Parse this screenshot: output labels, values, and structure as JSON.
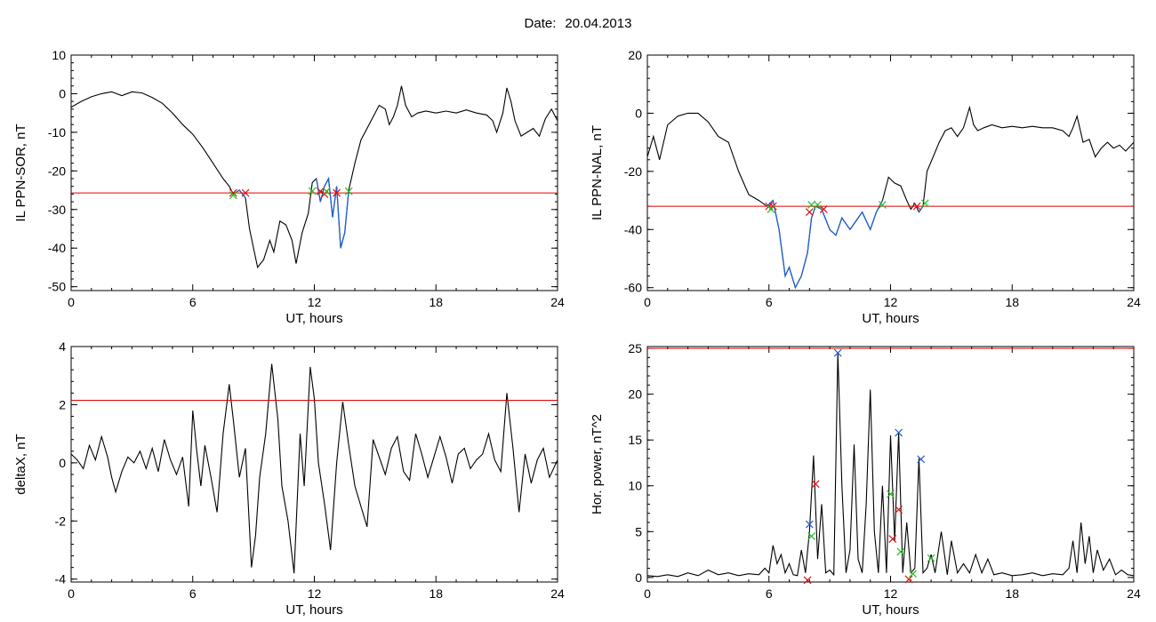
{
  "date_label": "Date:",
  "date_value": "20.04.2013",
  "chart_data": [
    {
      "type": "line",
      "title": "",
      "xlabel": "UT, hours",
      "ylabel": "IL PPN-SOR, nT",
      "xlim": [
        0,
        24
      ],
      "ylim": [
        -51,
        10
      ],
      "xticks": [
        "0",
        "6",
        "12",
        "18",
        "24"
      ],
      "yticks": [
        10,
        0,
        -10,
        -20,
        -30,
        -40,
        -50
      ],
      "ytick_labels": [
        "10",
        "0",
        "-10",
        "-20",
        "-30",
        "-40",
        "-50"
      ],
      "grid": false,
      "threshold": -25.7,
      "threshold_color": "#e00000",
      "series_color": "#000000",
      "highlight_color": "#1f5fd1",
      "highlight_ranges": [
        [
          8.0,
          8.6
        ],
        [
          12.0,
          13.7
        ]
      ],
      "series": [
        {
          "x": [
            0,
            0.5,
            1,
            1.5,
            2,
            2.5,
            3,
            3.5,
            4,
            4.5,
            5,
            5.5,
            6,
            6.5,
            7,
            7.5,
            7.8,
            8.0,
            8.3,
            8.6,
            8.8,
            9.0,
            9.2,
            9.5,
            9.8,
            10.0,
            10.3,
            10.6,
            10.9,
            11.1,
            11.4,
            11.7,
            11.9,
            12.1,
            12.3,
            12.5,
            12.7,
            12.9,
            13.1,
            13.3,
            13.5,
            13.7,
            14.0,
            14.3,
            14.6,
            14.9,
            15.2,
            15.5,
            15.7,
            15.9,
            16.1,
            16.3,
            16.5,
            16.8,
            17.1,
            17.5,
            18.0,
            18.5,
            19.0,
            19.5,
            20.0,
            20.5,
            20.8,
            21.0,
            21.3,
            21.5,
            21.7,
            21.9,
            22.2,
            22.5,
            22.8,
            23.1,
            23.4,
            23.7,
            24
          ],
          "y": [
            -3.5,
            -2,
            -0.8,
            0,
            0.5,
            -0.5,
            0.5,
            0.2,
            -1,
            -2.5,
            -5,
            -8,
            -10.5,
            -14,
            -18,
            -22,
            -24,
            -26,
            -25,
            -27,
            -35,
            -40,
            -45,
            -43,
            -38,
            -41,
            -33,
            -34,
            -38,
            -44,
            -36,
            -31,
            -23,
            -22,
            -28,
            -24,
            -22,
            -32,
            -24,
            -40,
            -36,
            -25,
            -18,
            -12,
            -9,
            -6,
            -3,
            -4,
            -8,
            -6,
            -3,
            2,
            -3,
            -6,
            -5,
            -4.5,
            -5,
            -4.5,
            -5,
            -4.2,
            -5,
            -5.5,
            -7,
            -10,
            -5,
            1.5,
            -2,
            -7,
            -11,
            -10,
            -9,
            -11,
            -6.5,
            -4,
            -7
          ]
        }
      ],
      "markers": [
        {
          "x": 8.0,
          "y": -25.7,
          "color": "red"
        },
        {
          "x": 8.0,
          "y": -26.3,
          "color": "green"
        },
        {
          "x": 8.6,
          "y": -25.7,
          "color": "red"
        },
        {
          "x": 11.9,
          "y": -25.2,
          "color": "green"
        },
        {
          "x": 12.3,
          "y": -25.3,
          "color": "red"
        },
        {
          "x": 12.5,
          "y": -26.0,
          "color": "red"
        },
        {
          "x": 12.6,
          "y": -25.3,
          "color": "green"
        },
        {
          "x": 13.1,
          "y": -25.7,
          "color": "red"
        },
        {
          "x": 13.7,
          "y": -25.3,
          "color": "green"
        }
      ]
    },
    {
      "type": "line",
      "title": "",
      "xlabel": "UT, hours",
      "ylabel": "IL PPN-NAL, nT",
      "xlim": [
        0,
        24
      ],
      "ylim": [
        -61,
        20
      ],
      "xticks": [
        "0",
        "6",
        "12",
        "18",
        "24"
      ],
      "yticks": [
        20,
        0,
        -20,
        -40,
        -60
      ],
      "ytick_labels": [
        "20",
        "0",
        "-20",
        "-40",
        "-60"
      ],
      "grid": false,
      "threshold": -32,
      "threshold_color": "#e00000",
      "series_color": "#000000",
      "highlight_color": "#1f5fd1",
      "highlight_ranges": [
        [
          5.9,
          11.6
        ],
        [
          13.3,
          13.7
        ]
      ],
      "series": [
        {
          "x": [
            0,
            0.3,
            0.6,
            1.0,
            1.5,
            2.0,
            2.5,
            3.0,
            3.5,
            4.0,
            4.5,
            5.0,
            5.5,
            5.9,
            6.2,
            6.5,
            6.8,
            7.0,
            7.3,
            7.6,
            7.9,
            8.1,
            8.3,
            8.6,
            9.0,
            9.3,
            9.6,
            10.0,
            10.3,
            10.6,
            11.0,
            11.3,
            11.6,
            11.9,
            12.2,
            12.5,
            12.8,
            13.0,
            13.2,
            13.4,
            13.6,
            13.8,
            14.1,
            14.4,
            14.7,
            15.0,
            15.3,
            15.6,
            15.9,
            16.1,
            16.3,
            16.6,
            17.0,
            17.5,
            18.0,
            18.5,
            19.0,
            19.5,
            20.0,
            20.5,
            20.8,
            21.0,
            21.2,
            21.5,
            21.8,
            22.1,
            22.4,
            22.7,
            23.0,
            23.3,
            23.6,
            24
          ],
          "y": [
            -15,
            -8,
            -16,
            -4,
            -1,
            0,
            0,
            -3,
            -8,
            -10,
            -20,
            -28,
            -30,
            -32,
            -30,
            -40,
            -56,
            -53,
            -60,
            -56,
            -48,
            -36,
            -32,
            -33,
            -40,
            -42,
            -36,
            -40,
            -37,
            -34,
            -40,
            -34,
            -30,
            -22,
            -24,
            -25,
            -30,
            -33,
            -31,
            -34,
            -32,
            -20,
            -15,
            -10,
            -6,
            -5,
            -8,
            -5,
            2,
            -4,
            -6,
            -5,
            -4,
            -5,
            -4.5,
            -5,
            -4.5,
            -5,
            -5,
            -6,
            -8,
            -5,
            -1,
            -10,
            -9,
            -15,
            -12,
            -10,
            -12,
            -11,
            -13,
            -10
          ]
        }
      ],
      "markers": [
        {
          "x": 6.0,
          "y": -32,
          "color": "red"
        },
        {
          "x": 6.2,
          "y": -32,
          "color": "red"
        },
        {
          "x": 6.1,
          "y": -33,
          "color": "green"
        },
        {
          "x": 8.0,
          "y": -34,
          "color": "red"
        },
        {
          "x": 8.1,
          "y": -31.5,
          "color": "green"
        },
        {
          "x": 8.4,
          "y": -31.5,
          "color": "green"
        },
        {
          "x": 8.7,
          "y": -33,
          "color": "red"
        },
        {
          "x": 11.6,
          "y": -31.5,
          "color": "green"
        },
        {
          "x": 13.3,
          "y": -32,
          "color": "red"
        },
        {
          "x": 13.7,
          "y": -31,
          "color": "green"
        }
      ]
    },
    {
      "type": "line",
      "title": "",
      "xlabel": "UT, hours",
      "ylabel": "deltaX, nT",
      "xlim": [
        0,
        24
      ],
      "ylim": [
        -4.1,
        4
      ],
      "xticks": [
        "0",
        "6",
        "12",
        "18",
        "24"
      ],
      "yticks": [
        4,
        2,
        0,
        -2,
        -4
      ],
      "ytick_labels": [
        "4",
        "2",
        "0",
        "-2",
        "-4"
      ],
      "grid": false,
      "threshold": 2.15,
      "threshold_color": "#e00000",
      "series_color": "#000000",
      "series": [
        {
          "x": [
            0,
            0.3,
            0.6,
            0.9,
            1.2,
            1.5,
            1.8,
            2.0,
            2.2,
            2.5,
            2.8,
            3.1,
            3.4,
            3.7,
            4.0,
            4.3,
            4.6,
            4.9,
            5.2,
            5.5,
            5.8,
            6.0,
            6.2,
            6.4,
            6.6,
            6.9,
            7.2,
            7.5,
            7.8,
            8.0,
            8.3,
            8.6,
            8.9,
            9.1,
            9.3,
            9.6,
            9.9,
            10.2,
            10.4,
            10.7,
            11.0,
            11.3,
            11.5,
            11.8,
            12.0,
            12.2,
            12.5,
            12.8,
            13.1,
            13.4,
            13.7,
            14.0,
            14.3,
            14.6,
            14.9,
            15.2,
            15.5,
            15.8,
            16.1,
            16.4,
            16.7,
            17.0,
            17.3,
            17.6,
            17.9,
            18.2,
            18.5,
            18.8,
            19.1,
            19.4,
            19.7,
            20.0,
            20.3,
            20.6,
            20.9,
            21.2,
            21.5,
            21.8,
            22.1,
            22.4,
            22.7,
            23.0,
            23.3,
            23.6,
            24
          ],
          "y": [
            0.3,
            0.1,
            -0.2,
            0.6,
            0.1,
            0.9,
            0.2,
            -0.5,
            -1.0,
            -0.3,
            0.2,
            0,
            0.4,
            -0.2,
            0.5,
            -0.3,
            0.8,
            0.1,
            -0.4,
            0.2,
            -1.5,
            1.8,
            0.4,
            -0.8,
            0.6,
            -0.5,
            -1.7,
            1.0,
            2.7,
            1.5,
            -0.5,
            0.5,
            -3.6,
            -2.5,
            -0.5,
            1.0,
            3.4,
            1.5,
            -0.8,
            -2.0,
            -3.8,
            1.0,
            -0.8,
            3.3,
            2.2,
            0,
            -1.4,
            -3.0,
            0,
            2.1,
            0.6,
            -0.8,
            -1.5,
            -2.2,
            0.8,
            0.2,
            -0.4,
            0.5,
            0.9,
            -0.3,
            -0.6,
            1.0,
            0.3,
            -0.5,
            0.2,
            0.9,
            0.2,
            -0.7,
            0.3,
            0.5,
            -0.2,
            0.1,
            0.3,
            1.0,
            0.1,
            -0.3,
            2.4,
            0.5,
            -1.7,
            0.3,
            -0.7,
            0.1,
            0.5,
            -0.5,
            0.1
          ]
        }
      ],
      "markers": []
    },
    {
      "type": "line",
      "title": "",
      "xlabel": "UT, hours",
      "ylabel": "Hor. power, nT^2",
      "xlim": [
        0,
        24
      ],
      "ylim": [
        -0.5,
        25.2
      ],
      "xticks": [
        "0",
        "6",
        "12",
        "18",
        "24"
      ],
      "yticks": [
        25,
        20,
        15,
        10,
        5,
        0
      ],
      "ytick_labels": [
        "25",
        "20",
        "15",
        "10",
        "5",
        "0"
      ],
      "grid": false,
      "threshold": 25,
      "threshold_color": "#e00000",
      "series_color": "#000000",
      "series": [
        {
          "x": [
            0,
            0.5,
            1.0,
            1.5,
            2.0,
            2.5,
            3.0,
            3.5,
            4.0,
            4.5,
            5.0,
            5.5,
            5.8,
            6.0,
            6.2,
            6.4,
            6.6,
            6.8,
            7.0,
            7.2,
            7.4,
            7.6,
            7.8,
            8.0,
            8.2,
            8.4,
            8.6,
            8.8,
            9.0,
            9.2,
            9.4,
            9.6,
            9.8,
            10.0,
            10.2,
            10.4,
            10.6,
            10.8,
            11.0,
            11.2,
            11.4,
            11.6,
            11.8,
            12.0,
            12.2,
            12.4,
            12.6,
            12.8,
            13.0,
            13.2,
            13.4,
            13.6,
            13.8,
            14.0,
            14.2,
            14.5,
            14.8,
            15.0,
            15.3,
            15.6,
            15.9,
            16.2,
            16.5,
            16.8,
            17.1,
            17.5,
            18.0,
            18.5,
            19.0,
            19.5,
            20.0,
            20.5,
            20.8,
            21.0,
            21.2,
            21.4,
            21.6,
            21.8,
            22.0,
            22.2,
            22.5,
            22.8,
            23.1,
            23.4,
            23.7,
            24
          ],
          "y": [
            0.2,
            0.1,
            0.3,
            0.1,
            0.5,
            0.2,
            0.8,
            0.3,
            0.5,
            0.2,
            0.4,
            0.3,
            1.0,
            0.5,
            3.5,
            1.5,
            2.5,
            0.5,
            1.5,
            0.3,
            0.2,
            3.0,
            0.5,
            5.0,
            13.3,
            2.0,
            8.0,
            0.5,
            0.8,
            0.3,
            24.5,
            10.0,
            0.5,
            3.0,
            14.5,
            2.0,
            0.5,
            8.0,
            20.5,
            5.0,
            0.5,
            10.0,
            0.5,
            15.5,
            4.0,
            15.8,
            0.5,
            6.0,
            0.5,
            1.0,
            13.0,
            0.5,
            1.0,
            2.5,
            0.5,
            5.0,
            0.3,
            4.0,
            0.5,
            1.5,
            0.5,
            2.5,
            0.5,
            2.0,
            0.3,
            0.5,
            0.2,
            0.3,
            0.5,
            0.2,
            0.4,
            0.3,
            1.0,
            4.0,
            0.5,
            6.0,
            1.5,
            4.5,
            0.5,
            3.0,
            0.8,
            2.0,
            0.3,
            0.8,
            0.3,
            0.2
          ]
        }
      ],
      "markers": [
        {
          "x": 7.9,
          "y": -0.3,
          "color": "red"
        },
        {
          "x": 8.0,
          "y": 5.8,
          "color": "blue"
        },
        {
          "x": 8.1,
          "y": 4.5,
          "color": "green"
        },
        {
          "x": 8.3,
          "y": 10.2,
          "color": "red"
        },
        {
          "x": 9.4,
          "y": 24.5,
          "color": "blue"
        },
        {
          "x": 12.0,
          "y": 9.1,
          "color": "green"
        },
        {
          "x": 12.1,
          "y": 4.2,
          "color": "red"
        },
        {
          "x": 12.4,
          "y": 7.4,
          "color": "red"
        },
        {
          "x": 12.4,
          "y": 15.8,
          "color": "blue"
        },
        {
          "x": 12.5,
          "y": 2.8,
          "color": "green"
        },
        {
          "x": 12.9,
          "y": -0.2,
          "color": "red"
        },
        {
          "x": 13.1,
          "y": 0.4,
          "color": "green"
        },
        {
          "x": 13.5,
          "y": 12.9,
          "color": "blue"
        },
        {
          "x": 14.0,
          "y": 2.1,
          "color": "green"
        }
      ]
    }
  ]
}
